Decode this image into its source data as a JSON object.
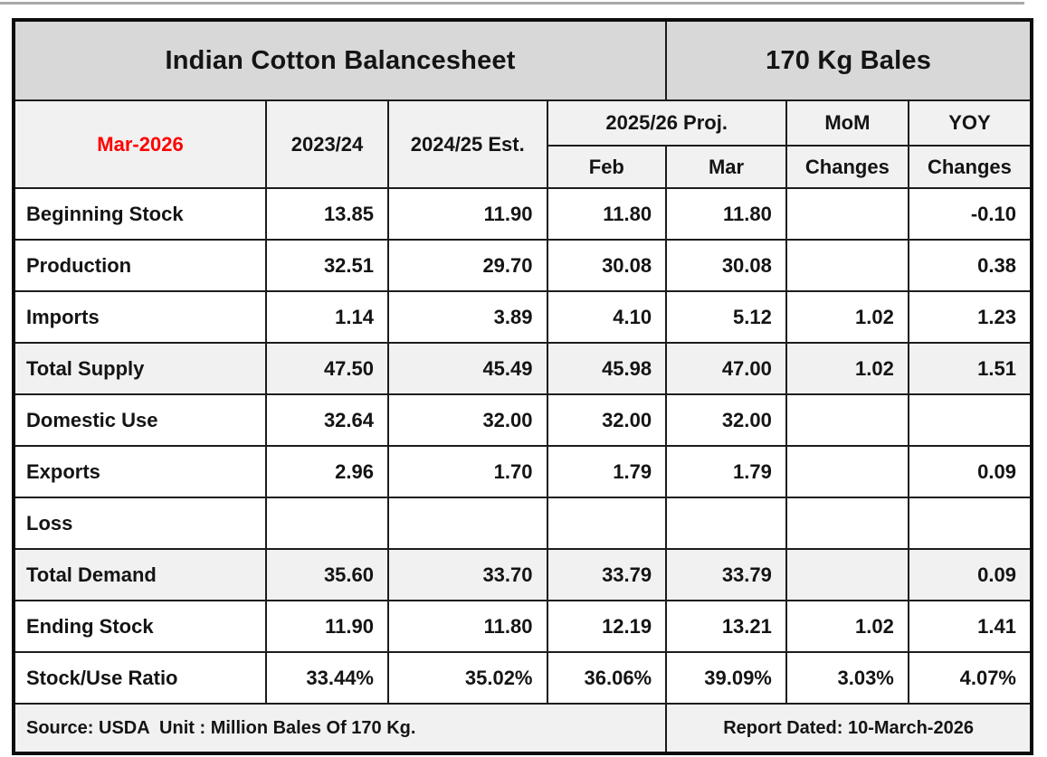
{
  "colors": {
    "accent_red": "#ff0000",
    "title_band_bg": "#d8d8d8",
    "header_bg": "#f1f1f1",
    "shaded_row_bg": "#f1f1f1",
    "grid_border": "#1c1c1c"
  },
  "chart_data": {
    "type": "table",
    "title": "Indian Cotton Balancesheet",
    "unit_label": "170 Kg Bales",
    "period_label": "Mar-2026",
    "header": {
      "col_2023_24": "2023/24",
      "col_2024_25": "2024/25 Est.",
      "proj_group": "2025/26 Proj.",
      "proj_feb": "Feb",
      "proj_mar": "Mar",
      "mom": "MoM",
      "mom_sub": "Changes",
      "yoy": "YOY",
      "yoy_sub": "Changes"
    },
    "columns": [
      "2023/24",
      "2024/25 Est.",
      "2025/26 Proj. Feb",
      "2025/26 Proj. Mar",
      "MoM Changes",
      "YOY Changes"
    ],
    "rows": [
      {
        "label": "Beginning Stock",
        "values": [
          "13.85",
          "11.90",
          "11.80",
          "11.80",
          "",
          "-0.10"
        ],
        "shaded": false
      },
      {
        "label": "Production",
        "values": [
          "32.51",
          "29.70",
          "30.08",
          "30.08",
          "",
          "0.38"
        ],
        "shaded": false
      },
      {
        "label": "Imports",
        "values": [
          "1.14",
          "3.89",
          "4.10",
          "5.12",
          "1.02",
          "1.23"
        ],
        "shaded": false
      },
      {
        "label": "Total Supply",
        "values": [
          "47.50",
          "45.49",
          "45.98",
          "47.00",
          "1.02",
          "1.51"
        ],
        "shaded": true
      },
      {
        "label": "Domestic Use",
        "values": [
          "32.64",
          "32.00",
          "32.00",
          "32.00",
          "",
          ""
        ],
        "shaded": false
      },
      {
        "label": "Exports",
        "values": [
          "2.96",
          "1.70",
          "1.79",
          "1.79",
          "",
          "0.09"
        ],
        "shaded": false
      },
      {
        "label": "Loss",
        "values": [
          "",
          "",
          "",
          "",
          "",
          ""
        ],
        "shaded": false
      },
      {
        "label": "Total Demand",
        "values": [
          "35.60",
          "33.70",
          "33.79",
          "33.79",
          "",
          "0.09"
        ],
        "shaded": true
      },
      {
        "label": "Ending Stock",
        "values": [
          "11.90",
          "11.80",
          "12.19",
          "13.21",
          "1.02",
          "1.41"
        ],
        "shaded": false
      },
      {
        "label": "Stock/Use Ratio",
        "values": [
          "33.44%",
          "35.02%",
          "36.06%",
          "39.09%",
          "3.03%",
          "4.07%"
        ],
        "shaded": false
      }
    ],
    "footer": {
      "source": "Source: USDA  Unit : Million Bales Of 170 Kg.",
      "report_date": "Report Dated: 10-March-2026"
    }
  }
}
